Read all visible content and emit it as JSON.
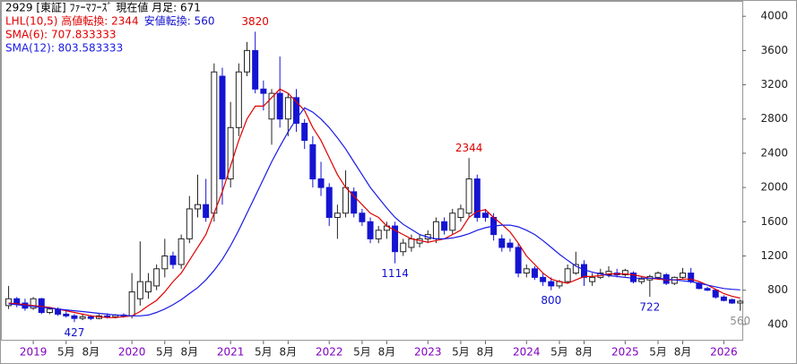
{
  "chart_data": {
    "type": "candlestick",
    "title": "2929 [東証] ﾌｧｰﾏﾌｰｽﾞ  現在値 月足: 671",
    "indicator_labels": [
      {
        "text": "LHL(10,5) 高値転換: 2344",
        "color": "#e00000"
      },
      {
        "text": "安値転換: 560",
        "color": "#1010d0"
      }
    ],
    "x": [
      "2018-10",
      "2018-11",
      "2018-12",
      "2019-01",
      "2019-02",
      "2019-03",
      "2019-04",
      "2019-05",
      "2019-06",
      "2019-07",
      "2019-08",
      "2019-09",
      "2019-10",
      "2019-11",
      "2019-12",
      "2020-01",
      "2020-02",
      "2020-03",
      "2020-04",
      "2020-05",
      "2020-06",
      "2020-07",
      "2020-08",
      "2020-09",
      "2020-10",
      "2020-11",
      "2020-12",
      "2021-01",
      "2021-02",
      "2021-03",
      "2021-04",
      "2021-05",
      "2021-06",
      "2021-07",
      "2021-08",
      "2021-09",
      "2021-10",
      "2021-11",
      "2021-12",
      "2022-01",
      "2022-02",
      "2022-03",
      "2022-04",
      "2022-05",
      "2022-06",
      "2022-07",
      "2022-08",
      "2022-09",
      "2022-10",
      "2022-11",
      "2022-12",
      "2023-01",
      "2023-02",
      "2023-03",
      "2023-04",
      "2023-05",
      "2023-06",
      "2023-07",
      "2023-08",
      "2023-09",
      "2023-10",
      "2023-11",
      "2023-12",
      "2024-01",
      "2024-02",
      "2024-03",
      "2024-04",
      "2024-05",
      "2024-06",
      "2024-07",
      "2024-08",
      "2024-09",
      "2024-10",
      "2024-11",
      "2024-12",
      "2025-01",
      "2025-02",
      "2025-03",
      "2025-04",
      "2025-05",
      "2025-06",
      "2025-07",
      "2025-08",
      "2025-09",
      "2025-10",
      "2025-11",
      "2025-12",
      "2026-01",
      "2026-02",
      "2026-03"
    ],
    "open": [
      620,
      700,
      650,
      590,
      700,
      540,
      580,
      520,
      500,
      470,
      490,
      470,
      500,
      490,
      510,
      500,
      700,
      780,
      850,
      1050,
      1200,
      1100,
      1400,
      1750,
      1800,
      1700,
      3300,
      2100,
      2700,
      3350,
      3600,
      3150,
      2800,
      3100,
      2800,
      3050,
      2750,
      2500,
      2100,
      2000,
      1650,
      1700,
      1950,
      1700,
      1600,
      1400,
      1500,
      1550,
      1250,
      1300,
      1350,
      1400,
      1400,
      1600,
      1500,
      1650,
      1700,
      2100,
      1700,
      1650,
      1400,
      1350,
      1300,
      1000,
      1050,
      950,
      900,
      850,
      900,
      1000,
      1100,
      900,
      950,
      980,
      1000,
      980,
      1000,
      900,
      920,
      950,
      980,
      880,
      950,
      1000,
      880,
      820,
      800,
      720,
      690,
      650
    ],
    "high": [
      850,
      720,
      700,
      720,
      710,
      600,
      600,
      560,
      520,
      520,
      510,
      520,
      530,
      520,
      530,
      1000,
      1370,
      1000,
      1100,
      1400,
      1250,
      1450,
      1900,
      2150,
      2100,
      3450,
      3400,
      3000,
      3450,
      3700,
      3820,
      3250,
      3150,
      3530,
      3100,
      3150,
      2800,
      2600,
      2300,
      2050,
      1800,
      2200,
      2000,
      1750,
      1650,
      1550,
      1600,
      1600,
      1400,
      1450,
      1450,
      1500,
      1650,
      1650,
      1750,
      1800,
      2344,
      2150,
      1750,
      1700,
      1450,
      1400,
      1350,
      1100,
      1080,
      1000,
      950,
      920,
      1100,
      1250,
      1150,
      1000,
      1050,
      1080,
      1050,
      1050,
      1020,
      960,
      980,
      1020,
      1000,
      960,
      1060,
      1060,
      900,
      840,
      810,
      740,
      700,
      690
    ],
    "low": [
      580,
      600,
      560,
      570,
      520,
      520,
      500,
      480,
      427,
      450,
      450,
      460,
      470,
      470,
      480,
      470,
      620,
      700,
      800,
      950,
      1050,
      1050,
      1350,
      1650,
      1600,
      1600,
      1800,
      2000,
      2600,
      3300,
      3100,
      2900,
      2500,
      2700,
      2600,
      2650,
      2450,
      2000,
      1900,
      1550,
      1400,
      1650,
      1650,
      1550,
      1350,
      1350,
      1400,
      1114,
      1200,
      1250,
      1300,
      1350,
      1350,
      1450,
      1450,
      1600,
      1650,
      1600,
      1600,
      1380,
      1250,
      1250,
      950,
      950,
      920,
      850,
      800,
      820,
      880,
      980,
      850,
      850,
      930,
      950,
      950,
      960,
      880,
      870,
      722,
      920,
      860,
      860,
      930,
      880,
      810,
      790,
      700,
      670,
      640,
      560
    ],
    "close": [
      700,
      650,
      590,
      700,
      540,
      580,
      520,
      500,
      470,
      490,
      470,
      500,
      490,
      510,
      500,
      780,
      900,
      900,
      1050,
      1200,
      1100,
      1400,
      1750,
      1800,
      1650,
      3350,
      2100,
      2700,
      3350,
      3600,
      3150,
      3100,
      3100,
      2800,
      3050,
      2750,
      2550,
      2100,
      2000,
      1650,
      1700,
      2000,
      1700,
      1600,
      1400,
      1500,
      1550,
      1250,
      1350,
      1400,
      1400,
      1450,
      1600,
      1500,
      1700,
      1750,
      2100,
      1650,
      1650,
      1450,
      1300,
      1300,
      1000,
      1050,
      950,
      900,
      850,
      900,
      1050,
      1100,
      950,
      950,
      1000,
      1020,
      980,
      1030,
      900,
      930,
      960,
      1000,
      880,
      950,
      1000,
      900,
      820,
      800,
      720,
      680,
      650,
      671
    ],
    "up_color": "#ffffff",
    "down_color": "#1414d2",
    "series": [
      {
        "name": "SMA(6): 707.833333",
        "color": "#e00000",
        "values": [
          650,
          640,
          630,
          620,
          610,
          600,
          580,
          560,
          540,
          520,
          500,
          490,
          480,
          480,
          490,
          500,
          550,
          620,
          680,
          780,
          900,
          1000,
          1150,
          1300,
          1450,
          1700,
          1950,
          2250,
          2550,
          2800,
          2950,
          2950,
          3050,
          3150,
          3100,
          3000,
          2900,
          2700,
          2550,
          2350,
          2150,
          2000,
          1900,
          1800,
          1700,
          1650,
          1550,
          1500,
          1450,
          1400,
          1380,
          1360,
          1380,
          1400,
          1450,
          1500,
          1650,
          1720,
          1740,
          1650,
          1570,
          1480,
          1350,
          1200,
          1100,
          1000,
          930,
          900,
          880,
          920,
          960,
          960,
          970,
          990,
          990,
          990,
          980,
          960,
          940,
          930,
          920,
          920,
          930,
          930,
          900,
          860,
          810,
          760,
          730,
          707.833333
        ]
      },
      {
        "name": "SMA(12): 803.583333",
        "color": "#1a1ae6",
        "values": [
          640,
          630,
          620,
          610,
          600,
          590,
          580,
          570,
          560,
          550,
          540,
          530,
          520,
          510,
          505,
          500,
          500,
          510,
          540,
          580,
          630,
          690,
          760,
          830,
          920,
          1030,
          1160,
          1320,
          1500,
          1700,
          1900,
          2100,
          2300,
          2480,
          2650,
          2800,
          2930,
          2880,
          2800,
          2700,
          2580,
          2450,
          2300,
          2150,
          2000,
          1880,
          1760,
          1650,
          1570,
          1510,
          1450,
          1420,
          1400,
          1400,
          1410,
          1430,
          1460,
          1500,
          1530,
          1550,
          1560,
          1560,
          1540,
          1500,
          1450,
          1380,
          1300,
          1220,
          1150,
          1080,
          1040,
          1010,
          990,
          970,
          960,
          950,
          940,
          940,
          940,
          940,
          930,
          920,
          910,
          900,
          880,
          860,
          840,
          820,
          810,
          803.583333
        ]
      }
    ],
    "annotations": [
      {
        "at": "2019-06",
        "of": "low",
        "color": "#1010d0"
      },
      {
        "at": "2021-04",
        "of": "high",
        "color": "#e00000"
      },
      {
        "at": "2022-09",
        "of": "low",
        "color": "#1010d0"
      },
      {
        "at": "2023-06",
        "of": "high",
        "color": "#e00000"
      },
      {
        "at": "2024-04",
        "of": "low",
        "color": "#1010d0"
      },
      {
        "at": "2025-04",
        "of": "low",
        "color": "#1010d0"
      },
      {
        "at": "2026-03",
        "of": "low",
        "color": "#909090"
      }
    ],
    "ylim": [
      210,
      4180
    ],
    "yticks": [
      400,
      800,
      1200,
      1600,
      2000,
      2400,
      2800,
      3200,
      3600,
      4000
    ],
    "xticks": [
      {
        "value": "2019-01",
        "label": "2019"
      },
      {
        "value": "2019-05",
        "label": "5月"
      },
      {
        "value": "2019-08",
        "label": "8月"
      },
      {
        "value": "2020-01",
        "label": "2020"
      },
      {
        "value": "2020-05",
        "label": "5月"
      },
      {
        "value": "2020-08",
        "label": "8月"
      },
      {
        "value": "2021-01",
        "label": "2021"
      },
      {
        "value": "2021-05",
        "label": "5月"
      },
      {
        "value": "2021-08",
        "label": "8月"
      },
      {
        "value": "2022-01",
        "label": "2022"
      },
      {
        "value": "2022-05",
        "label": "5月"
      },
      {
        "value": "2022-08",
        "label": "8月"
      },
      {
        "value": "2023-01",
        "label": "2023"
      },
      {
        "value": "2023-05",
        "label": "5月"
      },
      {
        "value": "2023-08",
        "label": "8月"
      },
      {
        "value": "2024-01",
        "label": "2024"
      },
      {
        "value": "2024-05",
        "label": "5月"
      },
      {
        "value": "2024-08",
        "label": "8月"
      },
      {
        "value": "2025-01",
        "label": "2025"
      },
      {
        "value": "2025-05",
        "label": "5月"
      },
      {
        "value": "2025-08",
        "label": "8月"
      },
      {
        "value": "2026-01",
        "label": "2026"
      }
    ],
    "year_tick_color": "#8000c0",
    "grid": false
  }
}
